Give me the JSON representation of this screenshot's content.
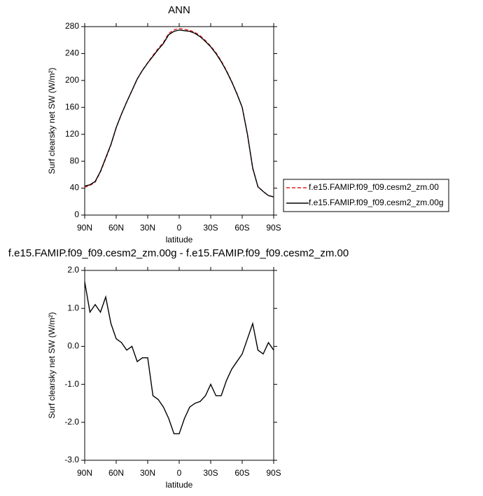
{
  "chart_data": [
    {
      "type": "line",
      "title": "ANN",
      "xlabel": "latitude",
      "ylabel": "Surf clearsky net SW (W/m²)",
      "x": [
        90,
        85,
        80,
        75,
        70,
        65,
        60,
        55,
        50,
        45,
        40,
        35,
        30,
        25,
        20,
        15,
        10,
        5,
        0,
        -5,
        -10,
        -15,
        -20,
        -25,
        -30,
        -35,
        -40,
        -45,
        -50,
        -55,
        -60,
        -65,
        -70,
        -75,
        -80,
        -85,
        -90
      ],
      "xlim": [
        90,
        -90
      ],
      "xticks": [
        {
          "value": 90,
          "label": "90N"
        },
        {
          "value": 60,
          "label": "60N"
        },
        {
          "value": 30,
          "label": "30N"
        },
        0,
        {
          "value": -30,
          "label": "30S"
        },
        {
          "value": -60,
          "label": "60S"
        },
        {
          "value": -90,
          "label": "90S"
        }
      ],
      "ylim": [
        0,
        280
      ],
      "yticks": [
        0,
        40,
        80,
        120,
        160,
        200,
        240,
        280
      ],
      "legend": "outside-right",
      "series": [
        {
          "name": "f.e15.FAMIP.f09_f09.cesm2_zm.00",
          "color": "#e0201b",
          "dash": true,
          "values": [
            41.3,
            44.1,
            48.9,
            64.1,
            83.7,
            104.4,
            129.8,
            149.9,
            168.1,
            185,
            202.4,
            215.3,
            226.3,
            237.3,
            247.4,
            256.6,
            269.9,
            275.3,
            277.3,
            275.9,
            274.6,
            271.5,
            266.45,
            259.3,
            251,
            241.3,
            229.3,
            214.9,
            198.6,
            180.4,
            160.2,
            119.8,
            69.4,
            42.1,
            35.2,
            28.9,
            27.1
          ]
        },
        {
          "name": "f.e15.FAMIP.f09_f09.cesm2_zm.00g",
          "color": "#000000",
          "dash": false,
          "values": [
            43,
            45,
            50,
            65,
            85,
            105,
            130,
            150,
            168,
            185,
            202,
            215,
            226,
            236,
            246,
            255,
            268,
            273,
            275,
            274,
            273,
            270,
            265,
            258,
            250,
            240,
            228,
            214,
            198,
            180,
            160,
            120,
            70,
            42,
            35,
            29,
            27
          ]
        }
      ]
    },
    {
      "type": "line",
      "title": "f.e15.FAMIP.f09_f09.cesm2_zm.00g - f.e15.FAMIP.f09_f09.cesm2_zm.00",
      "xlabel": "latitude",
      "ylabel": "Surf clearsky net SW (W/m²)",
      "x": [
        90,
        85,
        80,
        75,
        70,
        65,
        60,
        55,
        50,
        45,
        40,
        35,
        30,
        25,
        20,
        15,
        10,
        5,
        0,
        -5,
        -10,
        -15,
        -20,
        -25,
        -30,
        -35,
        -40,
        -45,
        -50,
        -55,
        -60,
        -65,
        -70,
        -75,
        -80,
        -85,
        -90
      ],
      "xlim": [
        90,
        -90
      ],
      "xticks": [
        {
          "value": 90,
          "label": "90N"
        },
        {
          "value": 60,
          "label": "60N"
        },
        {
          "value": 30,
          "label": "30N"
        },
        0,
        {
          "value": -30,
          "label": "30S"
        },
        {
          "value": -60,
          "label": "60S"
        },
        {
          "value": -90,
          "label": "90S"
        }
      ],
      "ylim": [
        -3,
        2
      ],
      "yticks": [
        {
          "value": -3,
          "label": "-3.0"
        },
        {
          "value": -2,
          "label": "-2.0"
        },
        {
          "value": -1,
          "label": "-1.0"
        },
        {
          "value": 0,
          "label": "0.0"
        },
        {
          "value": 1,
          "label": "1.0"
        },
        {
          "value": 2,
          "label": "2.0"
        }
      ],
      "series": [
        {
          "color": "#000000",
          "dash": false,
          "values": [
            1.7,
            0.9,
            1.1,
            0.9,
            1.3,
            0.6,
            0.2,
            0.1,
            -0.1,
            0.0,
            -0.4,
            -0.3,
            -0.3,
            -1.3,
            -1.4,
            -1.6,
            -1.9,
            -2.3,
            -2.3,
            -1.9,
            -1.6,
            -1.5,
            -1.45,
            -1.3,
            -1.0,
            -1.3,
            -1.3,
            -0.9,
            -0.6,
            -0.4,
            -0.2,
            0.2,
            0.6,
            -0.1,
            -0.2,
            0.1,
            -0.1
          ]
        }
      ]
    }
  ]
}
